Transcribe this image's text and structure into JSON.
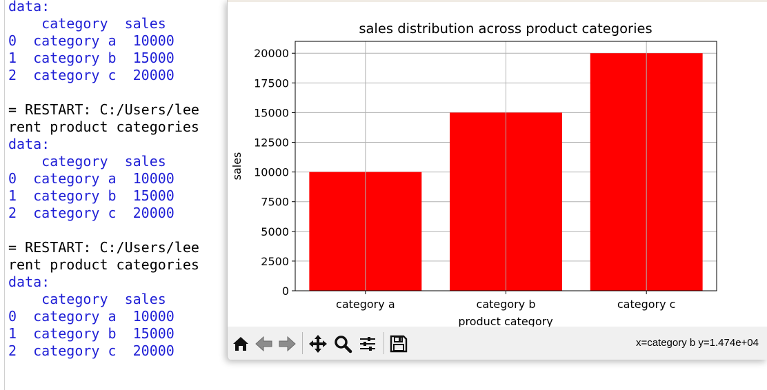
{
  "shell": {
    "lines": [
      {
        "text": "data:",
        "color": "blue"
      },
      {
        "text": "    category  sales",
        "color": "blue"
      },
      {
        "text": "0  category a  10000",
        "color": "blue"
      },
      {
        "text": "1  category b  15000",
        "color": "blue"
      },
      {
        "text": "2  category c  20000",
        "color": "blue"
      },
      {
        "text": "",
        "color": "black"
      },
      {
        "text": "= RESTART: C:/Users/lee",
        "color": "black"
      },
      {
        "text": "rent product categories",
        "color": "black"
      },
      {
        "text": "data:",
        "color": "blue"
      },
      {
        "text": "    category  sales",
        "color": "blue"
      },
      {
        "text": "0  category a  10000",
        "color": "blue"
      },
      {
        "text": "1  category b  15000",
        "color": "blue"
      },
      {
        "text": "2  category c  20000",
        "color": "blue"
      },
      {
        "text": "",
        "color": "black"
      },
      {
        "text": "= RESTART: C:/Users/lee",
        "color": "black"
      },
      {
        "text": "rent product categories",
        "color": "black"
      },
      {
        "text": "data:",
        "color": "blue"
      },
      {
        "text": "    category  sales",
        "color": "blue"
      },
      {
        "text": "0  category a  10000",
        "color": "blue"
      },
      {
        "text": "1  category b  15000",
        "color": "blue"
      },
      {
        "text": "2  category c  20000",
        "color": "blue"
      }
    ]
  },
  "chart_data": {
    "type": "bar",
    "title": "sales distribution across product categories",
    "xlabel": "product category",
    "ylabel": "sales",
    "categories": [
      "category a",
      "category b",
      "category c"
    ],
    "values": [
      10000,
      15000,
      20000
    ],
    "ylim": [
      0,
      21000
    ],
    "yticks": [
      0,
      2500,
      5000,
      7500,
      10000,
      12500,
      15000,
      17500,
      20000
    ],
    "bar_color": "#ff0000",
    "grid": true
  },
  "toolbar": {
    "buttons": [
      {
        "name": "home-icon"
      },
      {
        "name": "back-icon"
      },
      {
        "name": "forward-icon"
      },
      {
        "name": "pan-icon"
      },
      {
        "name": "zoom-icon"
      },
      {
        "name": "subplots-icon"
      },
      {
        "name": "save-icon"
      }
    ],
    "coords": "x=category b y=1.474e+04"
  }
}
